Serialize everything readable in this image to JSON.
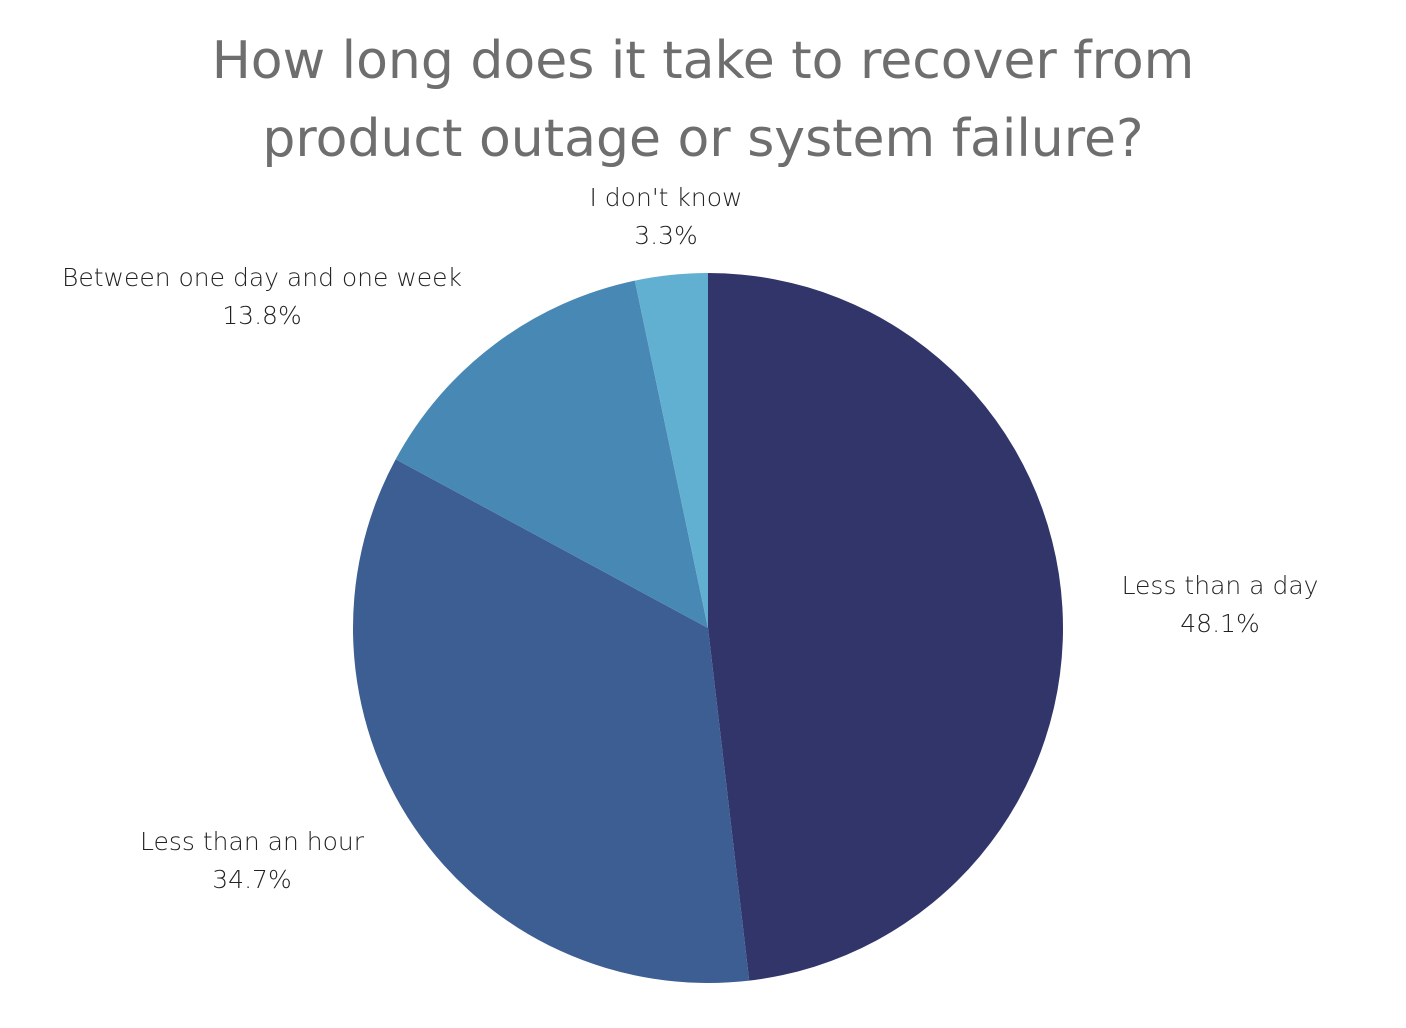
{
  "chart_data": {
    "type": "pie",
    "title": "How long does it take to recover from product outage or system failure?",
    "categories": [
      "Less than a day",
      "Less than an hour",
      "Between one day and one week",
      "I don't know"
    ],
    "values": [
      48.1,
      34.7,
      13.8,
      3.3
    ],
    "value_labels": [
      "48.1%",
      "34.7%",
      "13.8%",
      "3.3%"
    ],
    "colors": [
      "#32356a",
      "#3c5e93",
      "#4888b4",
      "#62b0d1"
    ]
  }
}
